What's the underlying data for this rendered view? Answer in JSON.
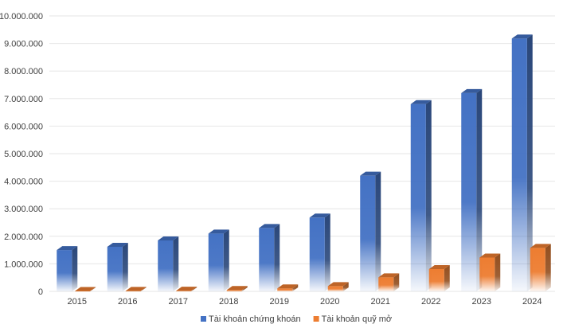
{
  "chart_data": {
    "type": "bar",
    "categories": [
      "2015",
      "2016",
      "2017",
      "2018",
      "2019",
      "2020",
      "2021",
      "2022",
      "2023",
      "2024"
    ],
    "series": [
      {
        "name": "Tài khoản chứng khoán",
        "color": "#4472C4",
        "values": [
          1500000,
          1620000,
          1850000,
          2100000,
          2300000,
          2680000,
          4200000,
          6800000,
          7200000,
          9180000
        ]
      },
      {
        "name": "Tài khoản quỹ mở",
        "color": "#ED7D31",
        "values": [
          15000,
          18000,
          25000,
          50000,
          110000,
          190000,
          510000,
          810000,
          1230000,
          1580000
        ]
      }
    ],
    "y_ticks": [
      "0",
      "1.000.000",
      "2.000.000",
      "3.000.000",
      "4.000.000",
      "5.000.000",
      "6.000.000",
      "7.000.000",
      "8.000.000",
      "9.000.000",
      "10.000.000"
    ],
    "ylim": [
      0,
      10000000
    ],
    "title": "",
    "xlabel": "",
    "ylabel": "",
    "grid": true,
    "legend_position": "bottom",
    "style": "3d-column-gradient"
  }
}
